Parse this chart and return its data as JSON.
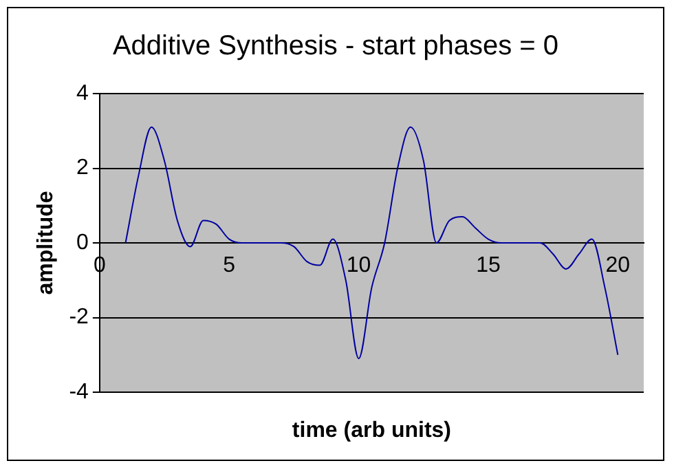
{
  "chart_data": {
    "type": "line",
    "title": "Additive Synthesis - start phases = 0",
    "xlabel": "time (arb units)",
    "ylabel": "amplitude",
    "x": [
      1,
      1.5,
      2,
      2.5,
      3,
      3.5,
      4,
      4.5,
      5,
      5.5,
      6,
      6.5,
      7,
      7.5,
      8,
      8.5,
      9,
      9.5,
      10,
      10.5,
      11,
      11.5,
      12,
      12.5,
      13,
      13.5,
      14,
      14.5,
      15,
      15.5,
      16,
      16.5,
      17,
      17.5,
      18,
      18.5,
      19,
      19.5,
      20
    ],
    "series": [
      {
        "color": "#0000a0",
        "values": [
          0,
          1.8,
          3.1,
          2.2,
          0.6,
          -0.1,
          0.6,
          0.5,
          0.1,
          0,
          0,
          0,
          0,
          -0.1,
          -0.5,
          -0.6,
          0.1,
          -1,
          -3.1,
          -1.2,
          0,
          2,
          3.1,
          2.2,
          0,
          0.6,
          0.7,
          0.4,
          0.1,
          0,
          0,
          0,
          0,
          -0.3,
          -0.7,
          -0.3,
          0.1,
          -1.2,
          -3
        ]
      }
    ],
    "xlim": [
      0,
      21
    ],
    "xticks": [
      0,
      5,
      10,
      15,
      20
    ],
    "ylim": [
      -4,
      4
    ],
    "yticks": [
      -4,
      -2,
      0,
      2,
      4
    ],
    "grid": "y",
    "legend": false,
    "marker": "none",
    "line_style": "solid"
  }
}
